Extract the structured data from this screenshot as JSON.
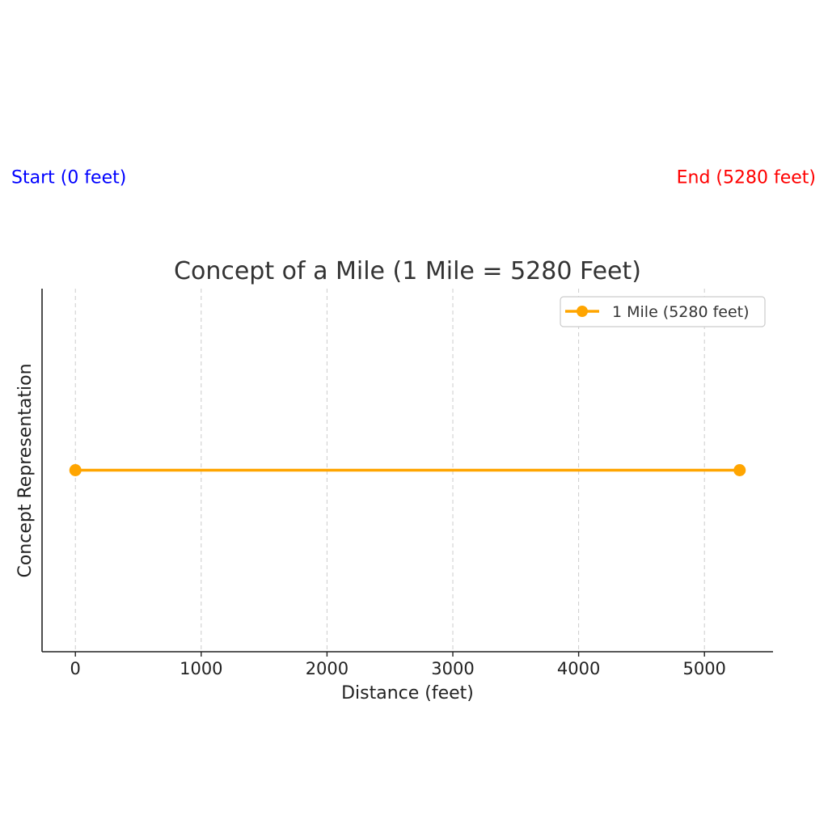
{
  "chart_data": {
    "type": "line",
    "title": "Concept of a Mile (1 Mile = 5280 Feet)",
    "xlabel": "Distance (feet)",
    "ylabel": "Concept Representation",
    "xlim": [
      -265,
      5545
    ],
    "ylim": [
      0,
      2
    ],
    "x_ticks": [
      0,
      1000,
      2000,
      3000,
      4000,
      5000
    ],
    "x_tick_labels": [
      "0",
      "1000",
      "2000",
      "3000",
      "4000",
      "5000"
    ],
    "grid": "x-dashed",
    "legend_position": "top-right",
    "series": [
      {
        "name": "1 Mile (5280 feet)",
        "x": [
          0,
          5280
        ],
        "y": [
          1,
          1
        ],
        "color": "#FFA500",
        "marker": "circle"
      }
    ],
    "annotations": [
      {
        "text": "Start (0 feet)",
        "x": 0,
        "y": 1.5,
        "color": "#0000FF",
        "align": "left"
      },
      {
        "text": "End (5280 feet)",
        "x": 5280,
        "y": 1.5,
        "color": "#FF0000",
        "align": "right"
      }
    ]
  }
}
